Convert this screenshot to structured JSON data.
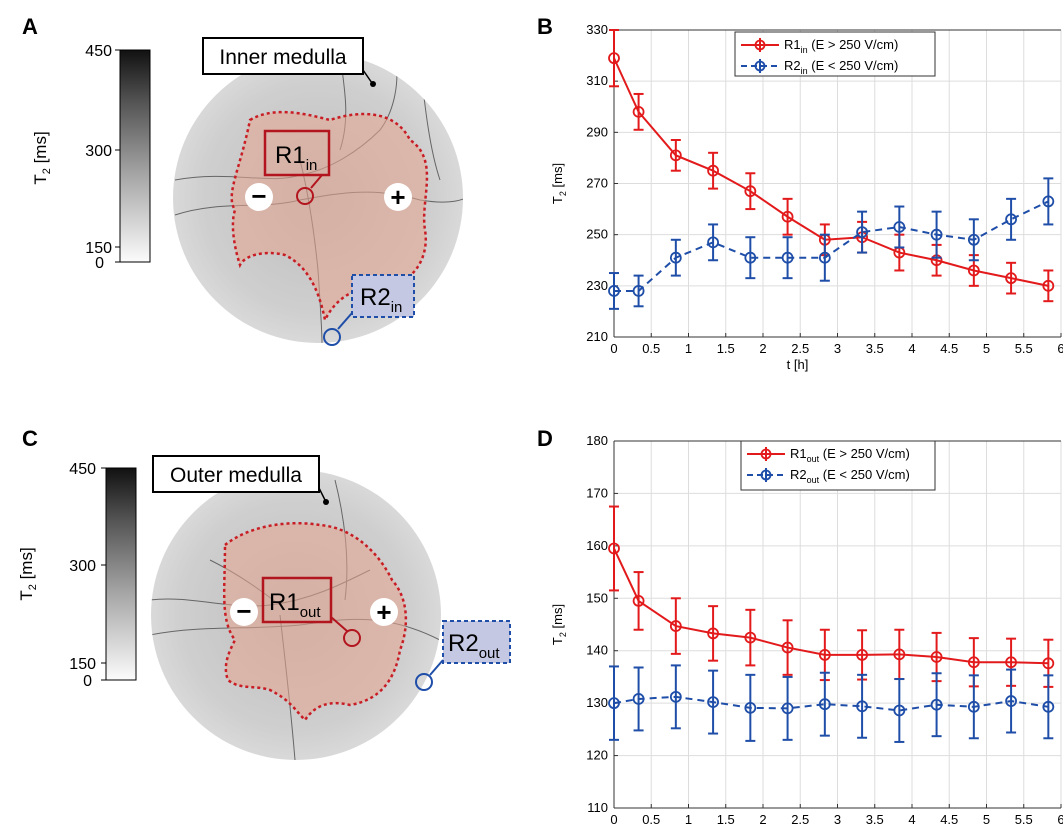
{
  "panels": {
    "A": {
      "letter": "A",
      "colorbar": {
        "ticks": [
          "450",
          "300",
          "150",
          "0"
        ],
        "label_main": "T",
        "label_sub": "2",
        "label_unit": " [ms]"
      },
      "region_label": "Inner medulla",
      "roi1": {
        "main": "R1",
        "sub": "in"
      },
      "roi2": {
        "main": "R2",
        "sub": "in"
      },
      "minus": "−",
      "plus": "+"
    },
    "B": {
      "letter": "B"
    },
    "C": {
      "letter": "C",
      "colorbar": {
        "ticks": [
          "450",
          "300",
          "150",
          "0"
        ],
        "label_main": "T",
        "label_sub": "2",
        "label_unit": " [ms]"
      },
      "region_label": "Outer medulla",
      "roi1": {
        "main": "R1",
        "sub": "out"
      },
      "roi2": {
        "main": "R2",
        "sub": "out"
      },
      "minus": "−",
      "plus": "+"
    },
    "D": {
      "letter": "D"
    }
  },
  "colors": {
    "red": "#e31a1c",
    "blue": "#1f4ea8",
    "roi_red_fill": "#e8a58f",
    "roi_blue_fill": "#c4c8e2",
    "grid": "#dddddd"
  },
  "chart_data": [
    {
      "type": "line",
      "panel": "B",
      "xlabel": "t [h]",
      "ylabel_main": "T",
      "ylabel_sub": "2",
      "ylabel_unit": " [ms]",
      "xlim": [
        0,
        6
      ],
      "ylim": [
        210,
        330
      ],
      "xticks": [
        0,
        0.5,
        1,
        1.5,
        2,
        2.5,
        3,
        3.5,
        4,
        4.5,
        5,
        5.5,
        6
      ],
      "xtick_labels": [
        "0",
        "0.5",
        "1",
        "1.5",
        "2",
        "2.5",
        "3",
        "3.5",
        "4",
        "4.5",
        "5",
        "5.5",
        "6"
      ],
      "yticks": [
        210,
        230,
        250,
        270,
        290,
        310,
        330
      ],
      "grid": true,
      "legend_position": "top-center",
      "series": [
        {
          "name_main": "R1",
          "name_sub": "in",
          "name_rest": " (E > 250 V/cm)",
          "color": "red",
          "style": "solid",
          "x": [
            0,
            0.33,
            0.83,
            1.33,
            1.83,
            2.33,
            2.83,
            3.33,
            3.83,
            4.33,
            4.83,
            5.33,
            5.83
          ],
          "y": [
            319,
            298,
            281,
            275,
            267,
            257,
            248,
            249,
            243,
            240,
            236,
            233,
            230
          ],
          "err": [
            11,
            7,
            6,
            7,
            7,
            7,
            6,
            6,
            7,
            6,
            6,
            6,
            6
          ]
        },
        {
          "name_main": "R2",
          "name_sub": "in",
          "name_rest": " (E < 250 V/cm)",
          "color": "blue",
          "style": "dashed",
          "x": [
            0,
            0.33,
            0.83,
            1.33,
            1.83,
            2.33,
            2.83,
            3.33,
            3.83,
            4.33,
            4.83,
            5.33,
            5.83
          ],
          "y": [
            228,
            228,
            241,
            247,
            241,
            241,
            241,
            251,
            253,
            250,
            248,
            256,
            263
          ],
          "err": [
            7,
            6,
            7,
            7,
            8,
            8,
            9,
            8,
            8,
            9,
            8,
            8,
            9
          ]
        }
      ]
    },
    {
      "type": "line",
      "panel": "D",
      "xlabel": "t [h]",
      "ylabel_main": "T",
      "ylabel_sub": "2",
      "ylabel_unit": " [ms]",
      "xlim": [
        0,
        6
      ],
      "ylim": [
        110,
        180
      ],
      "xticks": [
        0,
        0.5,
        1,
        1.5,
        2,
        2.5,
        3,
        3.5,
        4,
        4.5,
        5,
        5.5,
        6
      ],
      "xtick_labels": [
        "0",
        "0.5",
        "1",
        "1.5",
        "2",
        "2.5",
        "3",
        "3.5",
        "4",
        "4.5",
        "5",
        "5.5",
        "6"
      ],
      "yticks": [
        110,
        120,
        130,
        140,
        150,
        160,
        170,
        180
      ],
      "grid": true,
      "legend_position": "top-center",
      "series": [
        {
          "name_main": "R1",
          "name_sub": "out",
          "name_rest": " (E > 250 V/cm)",
          "color": "red",
          "style": "solid",
          "x": [
            0,
            0.33,
            0.83,
            1.33,
            1.83,
            2.33,
            2.83,
            3.33,
            3.83,
            4.33,
            4.83,
            5.33,
            5.83
          ],
          "y": [
            159.5,
            149.5,
            144.7,
            143.3,
            142.5,
            140.6,
            139.2,
            139.2,
            139.3,
            138.8,
            137.8,
            137.8,
            137.6
          ],
          "err": [
            8,
            5.5,
            5.3,
            5.2,
            5.3,
            5.2,
            4.8,
            4.7,
            4.7,
            4.6,
            4.6,
            4.5,
            4.5
          ]
        },
        {
          "name_main": "R2",
          "name_sub": "out",
          "name_rest": " (E < 250 V/cm)",
          "color": "blue",
          "style": "dashed",
          "x": [
            0,
            0.33,
            0.83,
            1.33,
            1.83,
            2.33,
            2.83,
            3.33,
            3.83,
            4.33,
            4.83,
            5.33,
            5.83
          ],
          "y": [
            130,
            130.8,
            131.2,
            130.2,
            129.1,
            129,
            129.8,
            129.4,
            128.6,
            129.7,
            129.3,
            130.4,
            129.3
          ],
          "err": [
            7,
            6,
            6,
            6,
            6.3,
            6,
            6,
            6,
            6,
            6,
            6,
            6,
            6
          ]
        }
      ]
    }
  ]
}
